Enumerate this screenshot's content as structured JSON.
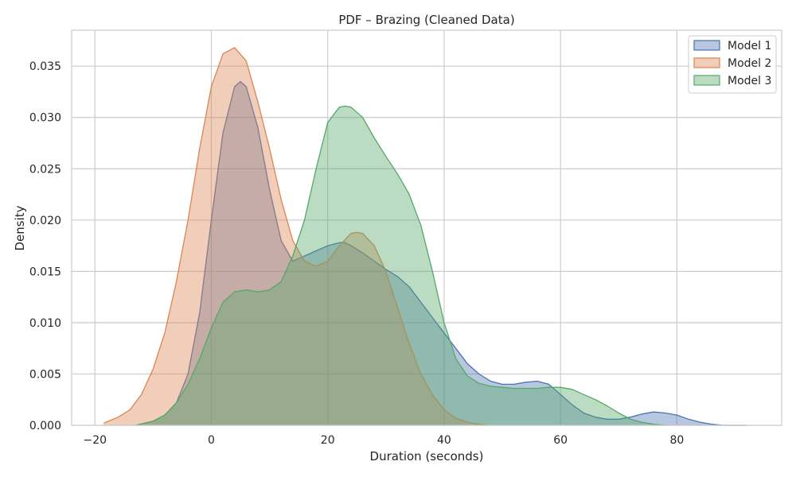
{
  "chart_data": {
    "type": "area",
    "title": "PDF – Brazing (Cleaned Data)",
    "xlabel": "Duration (seconds)",
    "ylabel": "Density",
    "xlim": [
      -24,
      98
    ],
    "ylim": [
      0,
      0.0385
    ],
    "x_ticks": [
      -20,
      0,
      20,
      40,
      60,
      80
    ],
    "x_tick_labels": [
      "−20",
      "0",
      "20",
      "40",
      "60",
      "80"
    ],
    "y_ticks": [
      0.0,
      0.005,
      0.01,
      0.015,
      0.02,
      0.025,
      0.03,
      0.035
    ],
    "y_tick_labels": [
      "0.000",
      "0.005",
      "0.010",
      "0.015",
      "0.020",
      "0.025",
      "0.030",
      "0.035"
    ],
    "grid": true,
    "legend_position": "top-right",
    "series": [
      {
        "name": "Model 1",
        "color": "#4c72b0",
        "x": [
          -13,
          -10,
          -8,
          -6,
          -4,
          -2,
          0,
          2,
          4,
          5,
          6,
          8,
          10,
          12,
          14,
          16,
          18,
          20,
          22,
          23,
          24,
          26,
          28,
          30,
          32,
          34,
          36,
          38,
          40,
          42,
          44,
          46,
          48,
          50,
          52,
          54,
          56,
          58,
          60,
          62,
          64,
          66,
          68,
          70,
          72,
          74,
          76,
          78,
          80,
          82,
          84,
          86,
          88,
          92
        ],
        "y": [
          0.0,
          0.0004,
          0.001,
          0.0022,
          0.005,
          0.011,
          0.02,
          0.0285,
          0.033,
          0.0335,
          0.033,
          0.029,
          0.023,
          0.018,
          0.016,
          0.0165,
          0.017,
          0.0175,
          0.0178,
          0.0178,
          0.0175,
          0.0168,
          0.016,
          0.0152,
          0.0145,
          0.0135,
          0.012,
          0.0105,
          0.009,
          0.0075,
          0.006,
          0.005,
          0.0043,
          0.004,
          0.004,
          0.0042,
          0.0043,
          0.004,
          0.003,
          0.002,
          0.0012,
          0.0008,
          0.0006,
          0.0006,
          0.0008,
          0.0011,
          0.0013,
          0.0012,
          0.001,
          0.0006,
          0.0003,
          0.0001,
          0.0,
          0.0
        ]
      },
      {
        "name": "Model 2",
        "color": "#dd8452",
        "x": [
          -18.5,
          -16,
          -14,
          -12,
          -10,
          -8,
          -6,
          -4,
          -2,
          0,
          2,
          4,
          6,
          8,
          10,
          12,
          14,
          16,
          18,
          20,
          22,
          24,
          25,
          26,
          28,
          30,
          32,
          34,
          36,
          38,
          40,
          42,
          44,
          46,
          47.5
        ],
        "y": [
          0.0002,
          0.0008,
          0.0015,
          0.003,
          0.0055,
          0.009,
          0.014,
          0.02,
          0.027,
          0.033,
          0.0362,
          0.0368,
          0.0355,
          0.0315,
          0.027,
          0.022,
          0.018,
          0.016,
          0.0155,
          0.016,
          0.0175,
          0.0187,
          0.0188,
          0.0187,
          0.0175,
          0.015,
          0.0115,
          0.008,
          0.005,
          0.003,
          0.0015,
          0.0007,
          0.0003,
          0.0001,
          0.0
        ]
      },
      {
        "name": "Model 3",
        "color": "#55a868",
        "x": [
          -13,
          -10,
          -8,
          -6,
          -4,
          -2,
          0,
          2,
          4,
          6,
          8,
          10,
          12,
          14,
          16,
          18,
          20,
          22,
          23,
          24,
          26,
          28,
          30,
          32,
          34,
          36,
          38,
          40,
          42,
          44,
          46,
          48,
          50,
          52,
          54,
          56,
          58,
          60,
          62,
          64,
          66,
          68,
          70,
          72,
          74,
          76,
          78
        ],
        "y": [
          0.0,
          0.0004,
          0.001,
          0.0022,
          0.004,
          0.0065,
          0.0095,
          0.012,
          0.013,
          0.0132,
          0.013,
          0.0132,
          0.014,
          0.0165,
          0.02,
          0.025,
          0.0295,
          0.031,
          0.0311,
          0.031,
          0.03,
          0.028,
          0.0262,
          0.0245,
          0.0225,
          0.0195,
          0.015,
          0.01,
          0.0065,
          0.0048,
          0.0041,
          0.0038,
          0.0037,
          0.0036,
          0.0036,
          0.0036,
          0.0037,
          0.0037,
          0.0035,
          0.003,
          0.0025,
          0.0019,
          0.0012,
          0.0006,
          0.0003,
          0.0001,
          0.0
        ]
      }
    ]
  }
}
